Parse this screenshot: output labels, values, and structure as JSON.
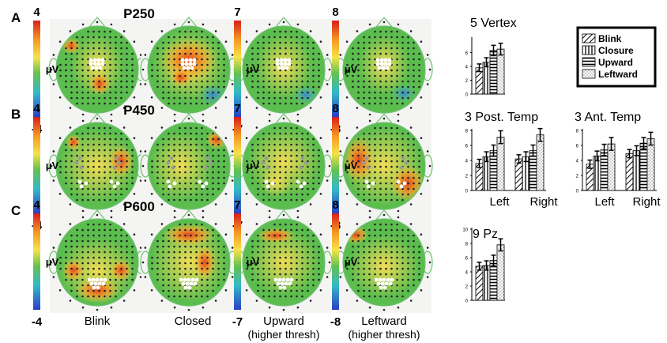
{
  "rows": [
    {
      "letter": "A",
      "component": "P250"
    },
    {
      "letter": "B",
      "component": "P450"
    },
    {
      "letter": "C",
      "component": "P600"
    }
  ],
  "scales": [
    {
      "max": "4",
      "min": "-4",
      "unit": "μV"
    },
    {
      "max": "7",
      "min": "-7",
      "unit": "μV"
    },
    {
      "max": "8",
      "min": "-8",
      "unit": "μV"
    }
  ],
  "conditions": [
    {
      "line1": "Blink",
      "line2": ""
    },
    {
      "line1": "Closed",
      "line2": ""
    },
    {
      "line1": "Upward",
      "line2": "(higher thresh)"
    },
    {
      "line1": "Leftward",
      "line2": "(higher thresh)"
    }
  ],
  "legend": [
    "Blink",
    "Closure",
    "Upward",
    "Leftward"
  ],
  "colors": {
    "hot": "#e03c1e",
    "warm": "#f6e04a",
    "mid": "#7cc66a",
    "cool": "#3a7fd0",
    "head_outline": "#6cc070"
  },
  "chart_data": [
    {
      "type": "bar",
      "title": "5 Vertex",
      "categories": [
        "Blink",
        "Closure",
        "Upward",
        "Leftward"
      ],
      "series": [
        {
          "values": [
            3.8,
            4.6,
            6.3,
            6.5
          ]
        }
      ],
      "yticks": [
        0,
        2,
        4,
        6
      ],
      "ylim": [
        0,
        8
      ]
    },
    {
      "type": "bar",
      "title": "3 Post. Temp",
      "groups": [
        "Left",
        "Right"
      ],
      "categories": [
        "Blink",
        "Closure",
        "Upward",
        "Leftward"
      ],
      "series": [
        {
          "values": [
            3.6,
            4.5,
            5.3,
            7.1
          ]
        },
        {
          "values": [
            4.2,
            4.5,
            5.3,
            7.4
          ]
        }
      ],
      "yticks": [
        0,
        2,
        4,
        6,
        8
      ],
      "ylim": [
        0,
        8
      ]
    },
    {
      "type": "bar",
      "title": "3 Ant. Temp",
      "groups": [
        "Left",
        "Right"
      ],
      "categories": [
        "Blink",
        "Closure",
        "Upward",
        "Leftward"
      ],
      "series": [
        {
          "values": [
            3.5,
            4.6,
            5.4,
            6.2
          ]
        },
        {
          "values": [
            4.9,
            5.3,
            6.3,
            6.9
          ]
        }
      ],
      "yticks": [
        0,
        2,
        4,
        6,
        8
      ],
      "ylim": [
        0,
        8
      ]
    },
    {
      "type": "bar",
      "title": "9 Pz",
      "categories": [
        "Blink",
        "Closure",
        "Upward",
        "Leftward"
      ],
      "series": [
        {
          "values": [
            4.8,
            4.9,
            5.6,
            7.8
          ]
        }
      ],
      "yticks": [
        0,
        2,
        4,
        6,
        8,
        10
      ],
      "ylim": [
        0,
        10
      ]
    }
  ]
}
